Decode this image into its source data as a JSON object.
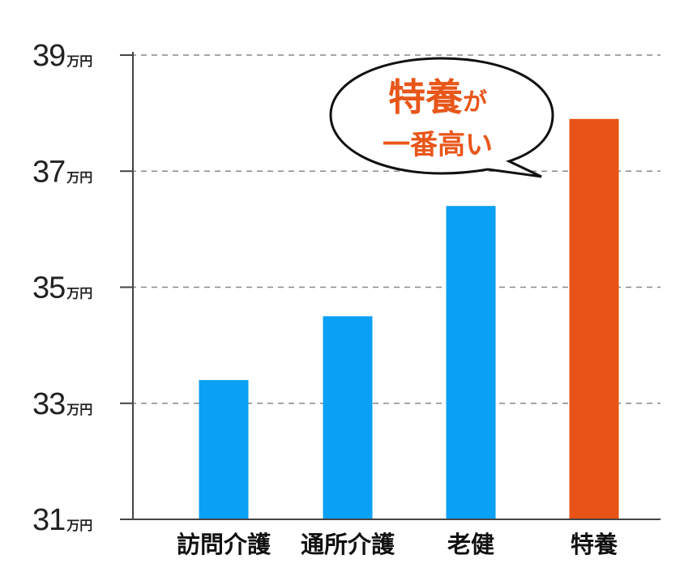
{
  "chart_data": {
    "type": "bar",
    "categories": [
      "訪問介護",
      "通所介護",
      "老健",
      "特養"
    ],
    "values": [
      33.4,
      34.5,
      36.4,
      37.9
    ],
    "ylim": [
      31,
      39
    ],
    "yticks": [
      31,
      33,
      35,
      37,
      39
    ],
    "y_unit": "万円",
    "grid": true,
    "grid_style": "dashed",
    "highlight_index": 3,
    "annotation": {
      "line1_main": "特養",
      "line1_suffix": "が",
      "line2": "一番高い"
    }
  },
  "colors": {
    "bar": "#0aa0f5",
    "highlight": "#e85418",
    "grid": "#888888",
    "axis": "#444444",
    "text": "#222222"
  }
}
